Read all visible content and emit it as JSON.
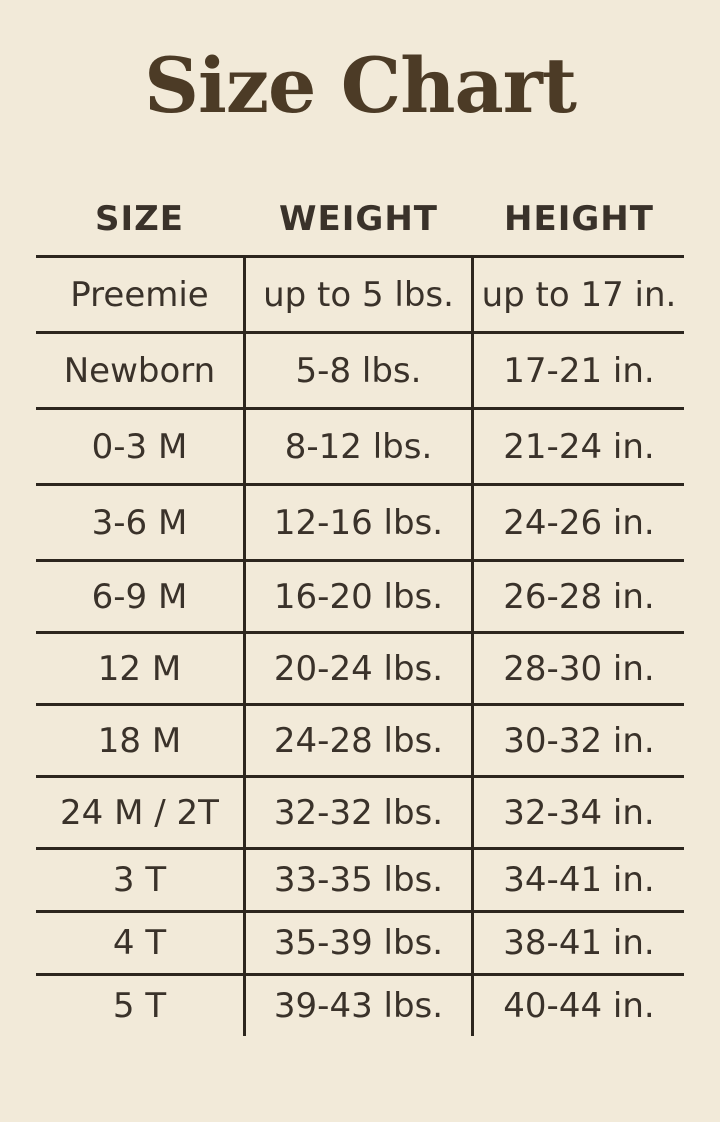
{
  "page_title": "Size Chart",
  "table": {
    "headers": [
      "SIZE",
      "WEIGHT",
      "HEIGHT"
    ],
    "rows": [
      [
        "Preemie",
        "up to 5 lbs.",
        "up to 17 in."
      ],
      [
        "Newborn",
        "5-8 lbs.",
        "17-21 in."
      ],
      [
        "0-3 M",
        "8-12 lbs.",
        "21-24 in."
      ],
      [
        "3-6 M",
        "12-16 lbs.",
        "24-26 in."
      ],
      [
        "6-9 M",
        "16-20 lbs.",
        "26-28 in."
      ],
      [
        "12 M",
        "20-24 lbs.",
        "28-30 in."
      ],
      [
        "18 M",
        "24-28 lbs.",
        "30-32 in."
      ],
      [
        "24 M / 2T",
        "32-32 lbs.",
        "32-34 in."
      ],
      [
        "3 T",
        "33-35 lbs.",
        "34-41 in."
      ],
      [
        "4 T",
        "35-39 lbs.",
        "38-41 in."
      ],
      [
        "5 T",
        "39-43 lbs.",
        "40-44 in."
      ]
    ]
  },
  "colors": {
    "background": "#f2ead9",
    "title_text": "#4c3b26",
    "body_text": "#3a322a",
    "line": "#2d261e"
  }
}
